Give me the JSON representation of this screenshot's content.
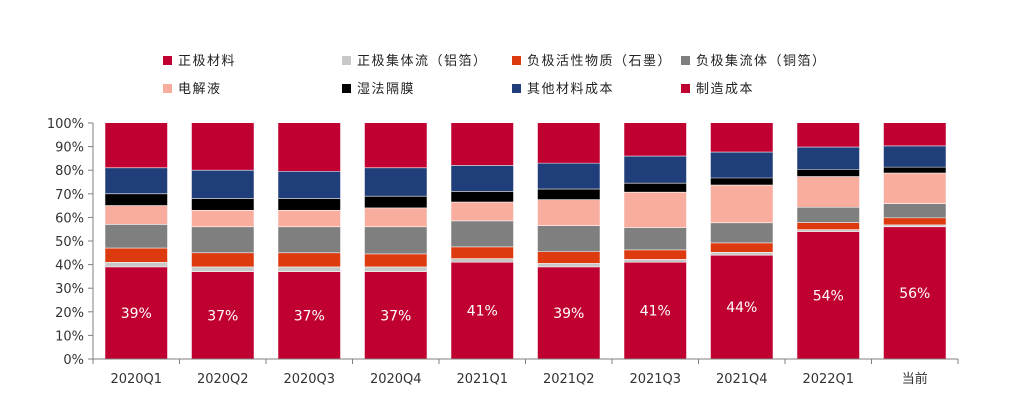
{
  "chart_data": {
    "type": "bar",
    "stacked": true,
    "categories": [
      "2020Q1",
      "2020Q2",
      "2020Q3",
      "2020Q4",
      "2021Q1",
      "2021Q2",
      "2021Q3",
      "2021Q4",
      "2022Q1",
      "当前"
    ],
    "ylim": [
      0,
      100
    ],
    "yticks": [
      "0%",
      "10%",
      "20%",
      "30%",
      "40%",
      "50%",
      "60%",
      "70%",
      "80%",
      "90%",
      "100%"
    ],
    "grid": false,
    "legend_position": "top",
    "series": [
      {
        "name": "正极材料",
        "color": "#c00030",
        "values": [
          39,
          37,
          37,
          37,
          41,
          39,
          41,
          44,
          54,
          56
        ],
        "labels": [
          "39%",
          "37%",
          "37%",
          "37%",
          "41%",
          "39%",
          "41%",
          "44%",
          "54%",
          "56%"
        ]
      },
      {
        "name": "正极集体流（铝箔）",
        "color": "#c8c8c8",
        "values": [
          2,
          2,
          2,
          2,
          1.5,
          1.5,
          1.2,
          1.2,
          0.8,
          0.8
        ]
      },
      {
        "name": "负极活性物质（石墨）",
        "color": "#dd3a10",
        "values": [
          6,
          6,
          6,
          5.5,
          5,
          5,
          4,
          4,
          3,
          3
        ]
      },
      {
        "name": "负极集流体（铜箔）",
        "color": "#7f7f7f",
        "values": [
          10,
          11,
          11,
          11.5,
          11,
          11,
          9.5,
          8.5,
          6.5,
          6
        ]
      },
      {
        "name": "电解液",
        "color": "#f9ad9f",
        "values": [
          8,
          7,
          7,
          8,
          8,
          11,
          15,
          16,
          13,
          13
        ]
      },
      {
        "name": "湿法隔膜",
        "color": "#000000",
        "values": [
          5,
          5,
          5,
          5,
          4.5,
          4.5,
          3.8,
          3,
          3,
          2.5
        ]
      },
      {
        "name": "其他材料成本",
        "color": "#203e7a",
        "values": [
          11,
          12,
          11.5,
          12,
          11,
          11,
          11.5,
          11,
          9.5,
          9
        ]
      },
      {
        "name": "制造成本",
        "color": "#c00030",
        "values": [
          19,
          20,
          20.5,
          19,
          18,
          17,
          14,
          12.3,
          10.2,
          9.7
        ]
      }
    ]
  }
}
